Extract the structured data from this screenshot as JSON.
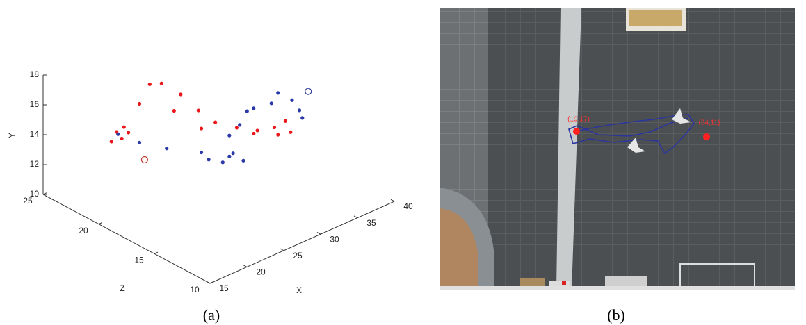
{
  "chart_data": {
    "type": "scatter3d",
    "xlabel": "X",
    "ylabel": "Y",
    "zlabel": "Z",
    "xlim": [
      15,
      40
    ],
    "ylim": [
      10,
      18
    ],
    "zlim": [
      10,
      25
    ],
    "xticks": [
      15,
      20,
      25,
      30,
      35,
      40
    ],
    "yticks": [
      10,
      12,
      14,
      16,
      18
    ],
    "zticks": [
      10,
      15,
      20,
      25
    ],
    "series": [
      {
        "color": "#e8181c",
        "x": [
          13.7,
          14.4,
          15.4,
          16.0,
          15.1,
          17.5,
          18.9,
          20.5,
          23.1,
          25.5,
          27.8,
          30.7,
          33.5,
          35.8,
          37.3,
          38.0,
          36.3,
          33.0,
          22.2,
          25.9
        ],
        "y": [
          16.6,
          17.1,
          17.2,
          16.7,
          16.5,
          18.3,
          19.3,
          19.0,
          17.7,
          16.1,
          14.8,
          13.8,
          13.0,
          12.7,
          12.8,
          11.9,
          12.1,
          12.9,
          16.8,
          14.8
        ],
        "z": [
          18,
          18,
          18,
          18,
          18,
          18,
          18,
          18,
          18,
          18,
          18,
          18,
          18,
          18,
          18,
          18,
          18,
          18,
          18,
          18
        ]
      },
      {
        "color": "#2b3aa8",
        "x": [
          14.6,
          17.5,
          21.2,
          25.9,
          29.7,
          31.6,
          30.2,
          29.7,
          31.1,
          32.1,
          33.0,
          35.4,
          36.3,
          38.2,
          39.2,
          39.6,
          26.9,
          28.8
        ],
        "y": [
          16.9,
          15.7,
          14.5,
          13.2,
          12.1,
          11.4,
          12.2,
          13.5,
          13.9,
          14.6,
          14.6,
          14.4,
          14.9,
          14.0,
          13.1,
          12.5,
          12.5,
          11.9
        ],
        "z": [
          18,
          18,
          18,
          18,
          18,
          18,
          18,
          18,
          18,
          18,
          18,
          18,
          18,
          18,
          18,
          18,
          18,
          18
        ]
      }
    ],
    "markers": [
      {
        "color": "#c0392b",
        "x": 18.2,
        "y": 14.4,
        "z": 18
      },
      {
        "color": "#2b3a8f",
        "x": 40.4,
        "y": 14.1,
        "z": 18
      }
    ]
  },
  "captions": [
    "(a)",
    "(b)"
  ],
  "photo": {
    "labels": [
      "(19,17)",
      "(34,11)"
    ]
  }
}
